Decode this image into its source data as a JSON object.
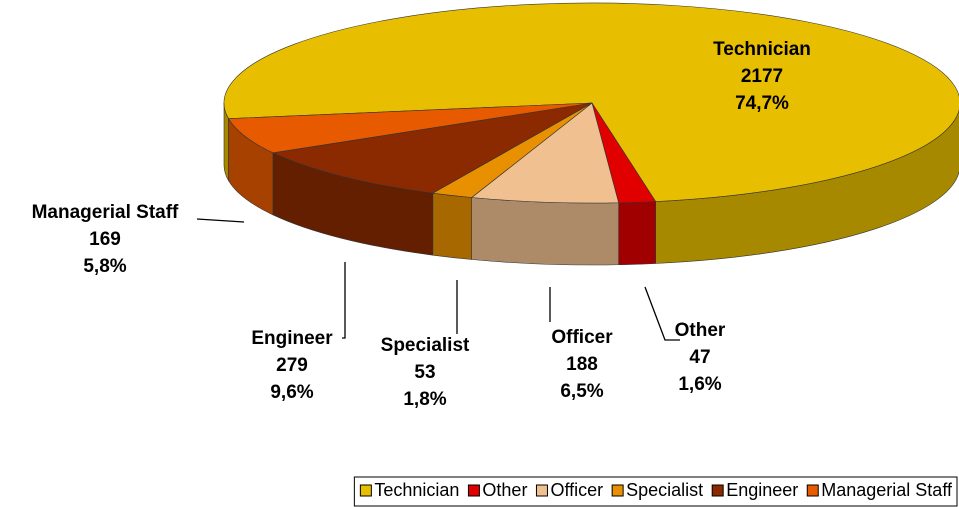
{
  "chart_data": {
    "type": "pie",
    "categories": [
      "Technician",
      "Other",
      "Officer",
      "Specialist",
      "Engineer",
      "Managerial Staff"
    ],
    "values": [
      2177,
      47,
      188,
      53,
      279,
      169
    ],
    "percents": [
      74.7,
      1.6,
      6.5,
      1.8,
      9.6,
      5.8
    ],
    "percent_labels": [
      "74,7%",
      "1,6%",
      "6,5%",
      "1,8%",
      "9,6%",
      "5,8%"
    ],
    "colors": [
      "#e8be00",
      "#e00000",
      "#f0c090",
      "#e89000",
      "#8b2a00",
      "#e85a00"
    ],
    "legend": "bottom-right"
  }
}
